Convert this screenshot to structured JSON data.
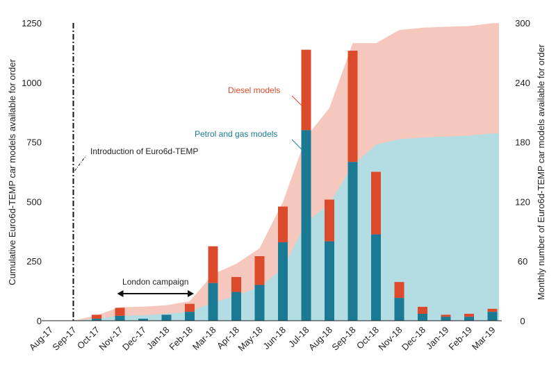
{
  "chart_data": {
    "type": "bar",
    "categories": [
      "Aug-17",
      "Sep-17",
      "Oct-17",
      "Nov-17",
      "Dec-17",
      "Jan-18",
      "Feb-18",
      "Mar-18",
      "Apr-18",
      "May-18",
      "Jun-18",
      "Jul-18",
      "Aug-18",
      "Sep-18",
      "Oct-18",
      "Nov-18",
      "Dec-18",
      "Jan-19",
      "Feb-19",
      "Mar-19"
    ],
    "y_left_label": "Cumulative Euro6d-TEMP car models available for order",
    "y_right_label": "Monthly number of Euro6d-TEMP car models available for order",
    "y_left_ticks": [
      0,
      250,
      500,
      750,
      1000,
      1250
    ],
    "y_right_ticks": [
      0,
      60,
      120,
      180,
      240,
      300
    ],
    "y_left_lim": [
      0,
      1250
    ],
    "y_right_lim": [
      0,
      300
    ],
    "monthly_series": [
      {
        "name": "Petrol and gas models",
        "color": "#1a7a94",
        "values": [
          0,
          0,
          2,
          5,
          2,
          6,
          9,
          38,
          29,
          36,
          79,
          192,
          80,
          160,
          87,
          23,
          7,
          4,
          4,
          9
        ]
      },
      {
        "name": "Diesel models",
        "color": "#dc4a2c",
        "values": [
          0,
          0,
          4,
          8,
          0,
          0,
          8,
          37,
          15,
          29,
          36,
          81,
          42,
          112,
          63,
          16,
          7,
          2,
          3,
          3
        ]
      }
    ],
    "cumulative_series": [
      {
        "name": "Petrol and gas models",
        "color": "#b3dce3",
        "values": [
          0,
          0,
          8,
          21,
          23,
          29,
          38,
          76,
          105,
          141,
          220,
          412,
          492,
          652,
          739,
          762,
          769,
          773,
          777,
          786
        ]
      },
      {
        "name": "Diesel models",
        "color": "#f6c8bd",
        "values": [
          0,
          0,
          23,
          57,
          59,
          65,
          82,
          195,
          239,
          304,
          498,
          771,
          893,
          1165,
          1165,
          1220,
          1230,
          1234,
          1237,
          1249
        ]
      }
    ],
    "annotations": {
      "intro": "Introduction of Euro6d-TEMP",
      "campaign": "London campaign",
      "diesel_label": "Diesel models",
      "petrol_label": "Petrol and gas models"
    },
    "colors": {
      "diesel_label": "#dc4a2c",
      "petrol_label": "#1a7a94",
      "intro_line": "#111111",
      "campaign_arrow": "#111111"
    }
  }
}
